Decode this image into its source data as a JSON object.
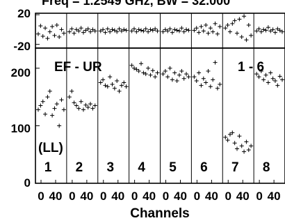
{
  "chart_data": {
    "type": "scatter",
    "title": "Freq = 1.2549 GHz, BW = 32.000",
    "xlabel": "Channels",
    "baseline": "EF - UR",
    "polarization": "(LL)",
    "page": "1 - 6",
    "panels": [
      "1",
      "2",
      "3",
      "4",
      "5",
      "6",
      "7",
      "8"
    ],
    "channel_tick_labels": [
      "0",
      "40"
    ],
    "phase": {
      "ylim": [
        -25,
        22
      ],
      "y_ticks": [
        20,
        -20
      ],
      "values": [
        [
          -6,
          5,
          -9,
          2,
          -12,
          -3,
          4,
          -8,
          6,
          -10,
          0,
          -5
        ],
        [
          -3,
          1,
          -5,
          0,
          -2,
          2,
          -4,
          -1,
          1,
          -3,
          0,
          -2
        ],
        [
          -2,
          0,
          -4,
          1,
          -3,
          0,
          -1,
          -3,
          1,
          -2,
          0,
          -1
        ],
        [
          -2,
          1,
          -3,
          0,
          -1,
          -2,
          1,
          -3,
          0,
          -1,
          1,
          -2
        ],
        [
          -3,
          0,
          -2,
          1,
          -4,
          0,
          -1,
          -2,
          2,
          -3,
          0,
          -1
        ],
        [
          -1,
          2,
          -4,
          4,
          -2,
          6,
          -5,
          2,
          -3,
          8,
          -6,
          4
        ],
        [
          2,
          6,
          -3,
          8,
          12,
          -5,
          14,
          -10,
          18,
          -14,
          6,
          -8
        ],
        [
          -2,
          1,
          -3,
          0,
          -1,
          3,
          -2,
          0,
          -4,
          1,
          -1,
          -3
        ]
      ]
    },
    "amplitude": {
      "ylim": [
        0,
        235
      ],
      "y_ticks": [
        200,
        100,
        0
      ],
      "values": [
        [
          128,
          135,
          142,
          120,
          150,
          160,
          118,
          130,
          138,
          100,
          145,
          128
        ],
        [
          150,
          160,
          140,
          135,
          130,
          142,
          128,
          136,
          132,
          138,
          130,
          135
        ],
        [
          175,
          180,
          170,
          168,
          185,
          172,
          165,
          178,
          160,
          170,
          175,
          168
        ],
        [
          205,
          200,
          198,
          195,
          208,
          192,
          190,
          200,
          188,
          196,
          185,
          192
        ],
        [
          190,
          195,
          185,
          200,
          180,
          192,
          178,
          188,
          195,
          182,
          190,
          185
        ],
        [
          185,
          178,
          192,
          170,
          182,
          175,
          195,
          168,
          180,
          210,
          165,
          172
        ],
        [
          80,
          75,
          85,
          88,
          70,
          60,
          82,
          65,
          55,
          72,
          58,
          65
        ],
        [
          190,
          185,
          195,
          180,
          188,
          175,
          192,
          182,
          178,
          170,
          186,
          180
        ]
      ]
    }
  }
}
